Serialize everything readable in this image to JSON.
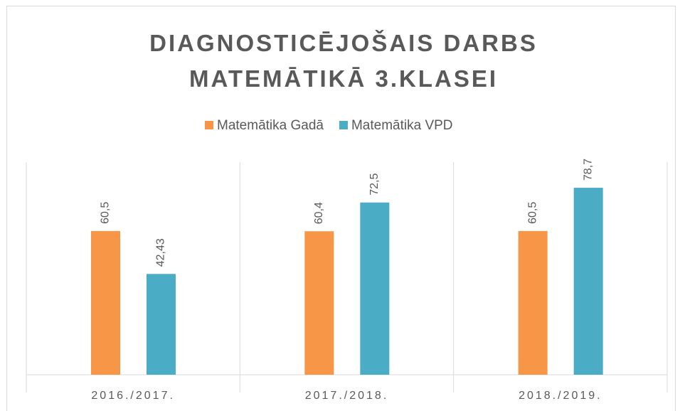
{
  "chart_data": {
    "type": "bar",
    "title": "DIAGNOSTICĒJOŠAIS DARBS MATEMĀTIKĀ 3.KLASEI",
    "categories": [
      "2016./2017.",
      "2017./2018.",
      "2018./2019."
    ],
    "series": [
      {
        "name": "Matemātika Gadā",
        "color": "#f79646",
        "values": [
          60.5,
          60.4,
          60.5
        ],
        "value_labels": [
          "60,5",
          "60,4",
          "60,5"
        ]
      },
      {
        "name": "Matemātika VPD",
        "color": "#4bacc6",
        "values": [
          42.43,
          72.5,
          78.7
        ],
        "value_labels": [
          "42,43",
          "72,5",
          "78,7"
        ]
      }
    ],
    "ylim": [
      0,
      89.5
    ],
    "legend": "top"
  }
}
